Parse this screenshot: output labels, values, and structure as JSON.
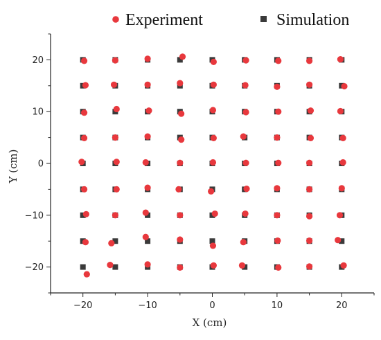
{
  "chart_data": {
    "type": "scatter",
    "xlabel": "X (cm)",
    "ylabel": "Y (cm)",
    "xlim": [
      -25,
      25
    ],
    "ylim": [
      -25,
      25
    ],
    "xticks": [
      -20,
      -10,
      0,
      10,
      20
    ],
    "yticks": [
      -20,
      -10,
      0,
      10,
      20
    ],
    "grid": false,
    "legend_position": "top",
    "series": [
      {
        "name": "Experiment",
        "marker": "circle",
        "color": "#e8383d",
        "points": [
          [
            -19.8,
            19.8
          ],
          [
            -15,
            19.9
          ],
          [
            -10,
            20.2
          ],
          [
            -4.6,
            20.6
          ],
          [
            0.2,
            19.6
          ],
          [
            5.2,
            19.9
          ],
          [
            10.2,
            19.8
          ],
          [
            15,
            19.8
          ],
          [
            19.8,
            20.1
          ],
          [
            -19.6,
            15.1
          ],
          [
            -15.2,
            15.2
          ],
          [
            -10,
            15.2
          ],
          [
            -5,
            15.5
          ],
          [
            0.2,
            15.2
          ],
          [
            5.1,
            15.1
          ],
          [
            10,
            14.8
          ],
          [
            15,
            15.2
          ],
          [
            20.4,
            14.9
          ],
          [
            -19.8,
            9.8
          ],
          [
            -14.8,
            10.5
          ],
          [
            -9.8,
            10.2
          ],
          [
            -4.8,
            9.6
          ],
          [
            0.1,
            10.3
          ],
          [
            5.2,
            9.9
          ],
          [
            10.2,
            10
          ],
          [
            15.2,
            10.2
          ],
          [
            19.8,
            10.1
          ],
          [
            -19.8,
            4.9
          ],
          [
            -15,
            5
          ],
          [
            -10,
            5.2
          ],
          [
            -4.8,
            4.6
          ],
          [
            0.2,
            4.9
          ],
          [
            4.8,
            5.2
          ],
          [
            10,
            5
          ],
          [
            15.2,
            4.9
          ],
          [
            20.2,
            4.9
          ],
          [
            -20.2,
            0.3
          ],
          [
            -14.8,
            0.3
          ],
          [
            -10.3,
            0.2
          ],
          [
            -5,
            0.1
          ],
          [
            0.1,
            0.2
          ],
          [
            5.2,
            0.1
          ],
          [
            10.2,
            0.1
          ],
          [
            15,
            0.1
          ],
          [
            20.2,
            0.2
          ],
          [
            -19.8,
            -5
          ],
          [
            -14.8,
            -5
          ],
          [
            -10,
            -4.7
          ],
          [
            -5.2,
            -5
          ],
          [
            -0.2,
            -5.4
          ],
          [
            5.3,
            -4.9
          ],
          [
            10,
            -4.8
          ],
          [
            15,
            -5
          ],
          [
            20,
            -4.8
          ],
          [
            -19.5,
            -9.8
          ],
          [
            -15,
            -10
          ],
          [
            -10.3,
            -9.5
          ],
          [
            -5,
            -10
          ],
          [
            0.4,
            -9.7
          ],
          [
            5.1,
            -9.7
          ],
          [
            10,
            -10
          ],
          [
            15,
            -10.2
          ],
          [
            19.7,
            -10
          ],
          [
            -19.6,
            -15.2
          ],
          [
            -15.6,
            -15.4
          ],
          [
            -10.3,
            -14.2
          ],
          [
            -5,
            -14.7
          ],
          [
            0.1,
            -15.9
          ],
          [
            4.8,
            -15.2
          ],
          [
            10.1,
            -14.9
          ],
          [
            15,
            -14.9
          ],
          [
            19.4,
            -14.8
          ],
          [
            -19.4,
            -21.4
          ],
          [
            -15.8,
            -19.6
          ],
          [
            -10,
            -19.5
          ],
          [
            -5,
            -20.1
          ],
          [
            0.2,
            -19.7
          ],
          [
            4.6,
            -19.7
          ],
          [
            10.2,
            -20.1
          ],
          [
            15,
            -19.9
          ],
          [
            20.3,
            -19.7
          ]
        ]
      },
      {
        "name": "Simulation",
        "marker": "square",
        "color": "#3a3a3a",
        "points": [
          [
            -20,
            20
          ],
          [
            -15,
            20
          ],
          [
            -10,
            20
          ],
          [
            -5,
            20
          ],
          [
            0,
            20
          ],
          [
            5,
            20
          ],
          [
            10,
            20
          ],
          [
            15,
            20
          ],
          [
            20,
            20
          ],
          [
            -20,
            15
          ],
          [
            -15,
            15
          ],
          [
            -10,
            15
          ],
          [
            -5,
            15
          ],
          [
            0,
            15
          ],
          [
            5,
            15
          ],
          [
            10,
            15
          ],
          [
            15,
            15
          ],
          [
            20,
            15
          ],
          [
            -20,
            10
          ],
          [
            -15,
            10
          ],
          [
            -10,
            10
          ],
          [
            -5,
            10
          ],
          [
            0,
            10
          ],
          [
            5,
            10
          ],
          [
            10,
            10
          ],
          [
            15,
            10
          ],
          [
            20,
            10
          ],
          [
            -20,
            5
          ],
          [
            -15,
            5
          ],
          [
            -10,
            5
          ],
          [
            -5,
            5
          ],
          [
            0,
            5
          ],
          [
            5,
            5
          ],
          [
            10,
            5
          ],
          [
            15,
            5
          ],
          [
            20,
            5
          ],
          [
            -20,
            0
          ],
          [
            -15,
            0
          ],
          [
            -10,
            0
          ],
          [
            -5,
            0
          ],
          [
            0,
            0
          ],
          [
            5,
            0
          ],
          [
            10,
            0
          ],
          [
            15,
            0
          ],
          [
            20,
            0
          ],
          [
            -20,
            -5
          ],
          [
            -15,
            -5
          ],
          [
            -10,
            -5
          ],
          [
            -5,
            -5
          ],
          [
            0,
            -5
          ],
          [
            5,
            -5
          ],
          [
            10,
            -5
          ],
          [
            15,
            -5
          ],
          [
            20,
            -5
          ],
          [
            -20,
            -10
          ],
          [
            -15,
            -10
          ],
          [
            -10,
            -10
          ],
          [
            -5,
            -10
          ],
          [
            0,
            -10
          ],
          [
            5,
            -10
          ],
          [
            10,
            -10
          ],
          [
            15,
            -10
          ],
          [
            20,
            -10
          ],
          [
            -20,
            -15
          ],
          [
            -15,
            -15
          ],
          [
            -10,
            -15
          ],
          [
            -5,
            -15
          ],
          [
            0,
            -15
          ],
          [
            5,
            -15
          ],
          [
            10,
            -15
          ],
          [
            15,
            -15
          ],
          [
            20,
            -15
          ],
          [
            -20,
            -20
          ],
          [
            -15,
            -20
          ],
          [
            -10,
            -20
          ],
          [
            -5,
            -20
          ],
          [
            0,
            -20
          ],
          [
            5,
            -20
          ],
          [
            10,
            -20
          ],
          [
            15,
            -20
          ],
          [
            20,
            -20
          ]
        ]
      }
    ]
  }
}
